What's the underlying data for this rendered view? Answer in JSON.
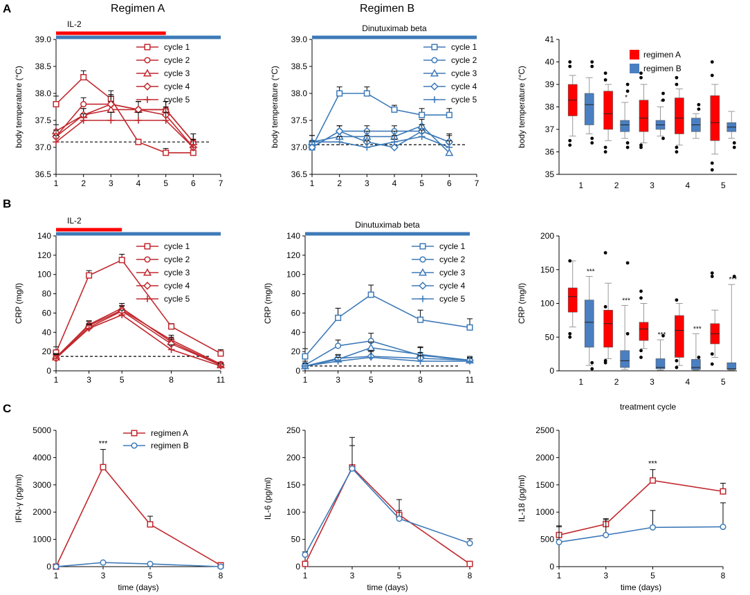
{
  "panel_labels": [
    "A",
    "B",
    "C"
  ],
  "regimen_titles": {
    "a": "Regimen A",
    "b": "Regimen B"
  },
  "colors": {
    "regimen_a": "#c1272d",
    "regimen_b": "#3d7ab8",
    "box_a": "#ff0000",
    "box_b": "#4a7fc1",
    "il2_bar": "#ff0000",
    "dinu_bar": "#3d7ab8",
    "axis": "#000000",
    "baseline": "#000000"
  },
  "chart_data": [
    {
      "id": "A1",
      "type": "line",
      "ylabel": "body temperature (°C)",
      "x": [
        1,
        2,
        3,
        4,
        5,
        6
      ],
      "xticks": [
        "1",
        "2",
        "3",
        "4",
        "5",
        "6",
        "7"
      ],
      "xlim": [
        1,
        7
      ],
      "ylim": [
        36.5,
        39.0
      ],
      "yticks": [
        "36.5",
        "37.0",
        "37.5",
        "38.0",
        "38.5",
        "39.0"
      ],
      "baseline": 37.1,
      "color_key": "regimen_a",
      "bars": [
        {
          "label": "IL-2",
          "from": 1,
          "to": 5,
          "color_key": "il2_bar"
        },
        {
          "label": "",
          "from": 1,
          "to": 7,
          "color_key": "dinu_bar"
        }
      ],
      "series": [
        {
          "name": "cycle 1",
          "marker": "square",
          "values": [
            37.8,
            38.3,
            37.9,
            37.1,
            36.9,
            36.9
          ],
          "err": [
            0.15,
            0.12,
            0.15,
            0.05,
            0.08,
            0.1
          ]
        },
        {
          "name": "cycle 2",
          "marker": "circle",
          "values": [
            37.2,
            37.8,
            37.8,
            37.7,
            37.7,
            37.1
          ],
          "err": [
            0.12,
            0.12,
            0.18,
            0.15,
            0.15,
            0.15
          ]
        },
        {
          "name": "cycle 3",
          "marker": "triangle",
          "values": [
            37.3,
            37.6,
            37.7,
            37.7,
            37.7,
            37.1
          ],
          "err": [
            0.12,
            0.12,
            0.15,
            0.15,
            0.15,
            0.15
          ]
        },
        {
          "name": "cycle 4",
          "marker": "diamond",
          "values": [
            37.2,
            37.6,
            37.8,
            37.7,
            37.6,
            37.0
          ],
          "err": [
            0.12,
            0.12,
            0.15,
            0.15,
            0.15,
            0.15
          ]
        },
        {
          "name": "cycle 5",
          "marker": "plus",
          "values": [
            37.1,
            37.5,
            37.5,
            37.5,
            37.5,
            37.0
          ],
          "err": [
            0.12,
            0.12,
            0.15,
            0.15,
            0.15,
            0.15
          ]
        }
      ]
    },
    {
      "id": "A2",
      "type": "line",
      "ylabel": "body temperature (°C)",
      "x": [
        1,
        2,
        3,
        4,
        5,
        6
      ],
      "xticks": [
        "1",
        "2",
        "3",
        "4",
        "5",
        "6",
        "7"
      ],
      "xlim": [
        1,
        7
      ],
      "ylim": [
        36.5,
        39.0
      ],
      "yticks": [
        "36.5",
        "37.0",
        "37.5",
        "38.0",
        "38.5",
        "39.0"
      ],
      "baseline": 37.05,
      "color_key": "regimen_b",
      "bars": [
        {
          "label": "Dinutuximab beta",
          "from": 1,
          "to": 7,
          "color_key": "dinu_bar"
        }
      ],
      "series": [
        {
          "name": "cycle 1",
          "marker": "square",
          "values": [
            37.0,
            38.0,
            38.0,
            37.7,
            37.6,
            37.6
          ],
          "err": [
            0.12,
            0.12,
            0.12,
            0.08,
            0.12,
            0.12
          ]
        },
        {
          "name": "cycle 2",
          "marker": "circle",
          "values": [
            37.0,
            37.3,
            37.3,
            37.3,
            37.3,
            37.1
          ],
          "err": [
            0.12,
            0.1,
            0.1,
            0.1,
            0.12,
            0.12
          ]
        },
        {
          "name": "cycle 3",
          "marker": "triangle",
          "values": [
            37.1,
            37.2,
            37.2,
            37.2,
            37.4,
            36.9
          ],
          "err": [
            0.12,
            0.1,
            0.1,
            0.1,
            0.12,
            0.2
          ]
        },
        {
          "name": "cycle 4",
          "marker": "diamond",
          "values": [
            37.0,
            37.3,
            37.1,
            37.0,
            37.3,
            37.1
          ],
          "err": [
            0.12,
            0.1,
            0.12,
            0.15,
            0.12,
            0.15
          ]
        },
        {
          "name": "cycle 5",
          "marker": "plus",
          "values": [
            37.1,
            37.1,
            37.0,
            37.1,
            37.2,
            37.0
          ],
          "err": [
            0.12,
            0.1,
            0.12,
            0.12,
            0.12,
            0.12
          ]
        }
      ]
    },
    {
      "id": "A3",
      "type": "box",
      "ylabel": "body temperature (°C)",
      "categories": [
        "1",
        "2",
        "3",
        "4",
        "5"
      ],
      "ylim": [
        35,
        41
      ],
      "yticks": [
        "35",
        "36",
        "37",
        "38",
        "39",
        "40",
        "41"
      ],
      "legend": [
        "regimen A",
        "regimen B"
      ],
      "groups": [
        {
          "a": {
            "q1": 37.6,
            "med": 38.3,
            "q3": 39.0,
            "wlo": 36.7,
            "whi": 39.4,
            "out": [
              36.3,
              36.5,
              39.8,
              40.0
            ]
          },
          "b": {
            "q1": 37.2,
            "med": 38.1,
            "q3": 38.6,
            "wlo": 36.8,
            "whi": 39.3,
            "out": [
              36.4,
              36.6,
              39.8,
              40.0
            ]
          },
          "sig": ""
        },
        {
          "a": {
            "q1": 37.0,
            "med": 37.7,
            "q3": 38.7,
            "wlo": 36.5,
            "whi": 39.0,
            "out": [
              36.0,
              36.2,
              39.2,
              39.5
            ]
          },
          "b": {
            "q1": 36.9,
            "med": 37.2,
            "q3": 37.4,
            "wlo": 36.6,
            "whi": 38.2,
            "out": [
              36.2,
              36.4,
              38.7,
              39.0
            ]
          },
          "sig": "*"
        },
        {
          "a": {
            "q1": 36.9,
            "med": 37.5,
            "q3": 38.3,
            "wlo": 36.4,
            "whi": 39.0,
            "out": [
              36.2,
              36.3,
              39.3,
              39.5
            ]
          },
          "b": {
            "q1": 37.0,
            "med": 37.2,
            "q3": 37.4,
            "wlo": 36.7,
            "whi": 38.0,
            "out": [
              36.6,
              38.3,
              38.6
            ]
          },
          "sig": "*"
        },
        {
          "a": {
            "q1": 36.8,
            "med": 37.5,
            "q3": 38.4,
            "wlo": 36.3,
            "whi": 38.8,
            "out": [
              36.0,
              36.2,
              39.0,
              39.3
            ]
          },
          "b": {
            "q1": 36.9,
            "med": 37.2,
            "q3": 37.5,
            "wlo": 36.6,
            "whi": 37.7,
            "out": [
              37.9,
              38.1
            ]
          },
          "sig": ""
        },
        {
          "a": {
            "q1": 36.5,
            "med": 37.3,
            "q3": 38.5,
            "wlo": 35.9,
            "whi": 39.0,
            "out": [
              35.2,
              35.5,
              39.4,
              40.0
            ]
          },
          "b": {
            "q1": 36.9,
            "med": 37.1,
            "q3": 37.3,
            "wlo": 36.6,
            "whi": 37.8,
            "out": [
              36.2,
              36.4
            ]
          },
          "sig": ""
        }
      ]
    },
    {
      "id": "B1",
      "type": "line",
      "ylabel": "CRP (mg/l)",
      "x": [
        1,
        3,
        5,
        8,
        11
      ],
      "xticks": [
        "1",
        "3",
        "5",
        "8",
        "11"
      ],
      "xlim": [
        1,
        11
      ],
      "ylim": [
        0,
        140
      ],
      "yticks": [
        "0",
        "20",
        "40",
        "60",
        "80",
        "100",
        "120",
        "140"
      ],
      "baseline": 15,
      "color_key": "regimen_a",
      "bars": [
        {
          "label": "IL-2",
          "from": 1,
          "to": 5,
          "color_key": "il2_bar"
        },
        {
          "label": "",
          "from": 1,
          "to": 11,
          "color_key": "dinu_bar"
        }
      ],
      "series": [
        {
          "name": "cycle 1",
          "marker": "square",
          "values": [
            19,
            99,
            115,
            46,
            18
          ],
          "err": [
            6,
            5,
            6,
            3,
            4
          ]
        },
        {
          "name": "cycle 2",
          "marker": "circle",
          "values": [
            14,
            47,
            63,
            32,
            7
          ],
          "err": [
            4,
            4,
            5,
            5,
            2
          ]
        },
        {
          "name": "cycle 3",
          "marker": "triangle",
          "values": [
            14,
            48,
            65,
            30,
            6
          ],
          "err": [
            4,
            4,
            5,
            5,
            2
          ]
        },
        {
          "name": "cycle 4",
          "marker": "diamond",
          "values": [
            13,
            45,
            62,
            28,
            6
          ],
          "err": [
            4,
            4,
            5,
            5,
            2
          ]
        },
        {
          "name": "cycle 5",
          "marker": "plus",
          "values": [
            13,
            44,
            58,
            22,
            5
          ],
          "err": [
            4,
            4,
            5,
            5,
            2
          ]
        }
      ]
    },
    {
      "id": "B2",
      "type": "line",
      "ylabel": "CRP (mg/l)",
      "x": [
        1,
        3,
        5,
        8,
        11
      ],
      "xticks": [
        "1",
        "3",
        "5",
        "8",
        "11"
      ],
      "xlim": [
        1,
        11
      ],
      "ylim": [
        0,
        140
      ],
      "yticks": [
        "0",
        "20",
        "40",
        "60",
        "80",
        "100",
        "120",
        "140"
      ],
      "baseline": 5,
      "color_key": "regimen_b",
      "bars": [
        {
          "label": "Dinutuximab beta",
          "from": 1,
          "to": 11,
          "color_key": "dinu_bar"
        }
      ],
      "series": [
        {
          "name": "cycle 1",
          "marker": "square",
          "values": [
            15,
            55,
            79,
            53,
            45
          ],
          "err": [
            8,
            10,
            10,
            10,
            9
          ]
        },
        {
          "name": "cycle 2",
          "marker": "circle",
          "values": [
            6,
            26,
            31,
            16,
            11
          ],
          "err": [
            4,
            6,
            8,
            8,
            4
          ]
        },
        {
          "name": "cycle 3",
          "marker": "triangle",
          "values": [
            5,
            12,
            24,
            17,
            11
          ],
          "err": [
            3,
            4,
            6,
            8,
            3
          ]
        },
        {
          "name": "cycle 4",
          "marker": "diamond",
          "values": [
            5,
            13,
            15,
            13,
            11
          ],
          "err": [
            3,
            4,
            6,
            6,
            3
          ]
        },
        {
          "name": "cycle 5",
          "marker": "plus",
          "values": [
            5,
            10,
            14,
            10,
            10
          ],
          "err": [
            3,
            4,
            6,
            6,
            3
          ]
        }
      ]
    },
    {
      "id": "B3",
      "type": "box",
      "ylabel": "CRP (mg/l)",
      "xlabel": "treatment cycle",
      "categories": [
        "1",
        "2",
        "3",
        "4",
        "5"
      ],
      "ylim": [
        0,
        200
      ],
      "yticks": [
        "0",
        "50",
        "100",
        "150",
        "200"
      ],
      "groups": [
        {
          "a": {
            "q1": 87,
            "med": 110,
            "q3": 123,
            "wlo": 65,
            "whi": 163,
            "out": [
              50,
              55,
              163
            ]
          },
          "b": {
            "q1": 35,
            "med": 72,
            "q3": 105,
            "wlo": 8,
            "whi": 140,
            "out": [
              3,
              12
            ]
          },
          "sig": "***"
        },
        {
          "a": {
            "q1": 35,
            "med": 70,
            "q3": 90,
            "wlo": 18,
            "whi": 130,
            "out": [
              12,
              15,
              95,
              175
            ]
          },
          "b": {
            "q1": 5,
            "med": 15,
            "q3": 30,
            "wlo": 2,
            "whi": 97,
            "out": [
              55,
              160
            ]
          },
          "sig": "***"
        },
        {
          "a": {
            "q1": 45,
            "med": 62,
            "q3": 72,
            "wlo": 33,
            "whi": 100,
            "out": [
              20,
              30,
              108,
              118
            ]
          },
          "b": {
            "q1": 3,
            "med": 5,
            "q3": 18,
            "wlo": 1,
            "whi": 46,
            "out": [
              52
            ]
          },
          "sig": "***"
        },
        {
          "a": {
            "q1": 20,
            "med": 60,
            "q3": 82,
            "wlo": 8,
            "whi": 100,
            "out": [
              5,
              15,
              105
            ]
          },
          "b": {
            "q1": 2,
            "med": 5,
            "q3": 17,
            "wlo": 1,
            "whi": 55,
            "out": [
              20
            ]
          },
          "sig": "***"
        },
        {
          "a": {
            "q1": 40,
            "med": 55,
            "q3": 70,
            "wlo": 20,
            "whi": 90,
            "out": [
              10,
              25,
              140,
              145
            ]
          },
          "b": {
            "q1": 2,
            "med": 3,
            "q3": 12,
            "wlo": 1,
            "whi": 128,
            "out": [
              140
            ]
          },
          "sig": "***"
        }
      ]
    },
    {
      "id": "C1",
      "type": "line",
      "ylabel": "IFN-γ (pg/ml)",
      "xlabel": "time (days)",
      "x": [
        1,
        3,
        5,
        8
      ],
      "xticks": [
        "1",
        "3",
        "5",
        "8"
      ],
      "xlim": [
        1,
        8
      ],
      "ylim": [
        0,
        5000
      ],
      "yticks": [
        "0",
        "1000",
        "2000",
        "3000",
        "4000",
        "5000"
      ],
      "legend": [
        "regimen A",
        "regimen B"
      ],
      "series": [
        {
          "name": "regimen A",
          "marker": "square",
          "color_key": "regimen_a",
          "values": [
            0,
            3650,
            1550,
            50
          ],
          "err": [
            20,
            650,
            300,
            40
          ],
          "sig": [
            "",
            "***",
            "",
            ""
          ]
        },
        {
          "name": "regimen B",
          "marker": "circle",
          "color_key": "regimen_b",
          "values": [
            0,
            150,
            100,
            0
          ],
          "err": [
            10,
            40,
            30,
            10
          ]
        }
      ]
    },
    {
      "id": "C2",
      "type": "line",
      "ylabel": "IL-6 (pg/ml)",
      "xlabel": "time (days)",
      "x": [
        1,
        3,
        5,
        8
      ],
      "xticks": [
        "1",
        "3",
        "5",
        "8"
      ],
      "xlim": [
        1,
        8
      ],
      "ylim": [
        0,
        250
      ],
      "yticks": [
        "0",
        "50",
        "100",
        "150",
        "200",
        "250"
      ],
      "series": [
        {
          "name": "regimen A",
          "marker": "square",
          "color_key": "regimen_a",
          "values": [
            5,
            182,
            95,
            5
          ],
          "err": [
            4,
            55,
            28,
            3
          ]
        },
        {
          "name": "regimen B",
          "marker": "circle",
          "color_key": "regimen_b",
          "values": [
            22,
            180,
            88,
            43
          ],
          "err": [
            5,
            42,
            15,
            8
          ]
        }
      ]
    },
    {
      "id": "C3",
      "type": "line",
      "ylabel": "IL-18 (pg/ml)",
      "xlabel": "time (days)",
      "x": [
        1,
        3,
        5,
        8
      ],
      "xticks": [
        "1",
        "3",
        "5",
        "8"
      ],
      "xlim": [
        1,
        8
      ],
      "ylim": [
        0,
        2500
      ],
      "yticks": [
        "0",
        "500",
        "1000",
        "1500",
        "2000",
        "2500"
      ],
      "series": [
        {
          "name": "regimen A",
          "marker": "square",
          "color_key": "regimen_a",
          "values": [
            580,
            780,
            1580,
            1380
          ],
          "err": [
            150,
            80,
            200,
            150
          ],
          "sig": [
            "",
            "",
            "***",
            ""
          ]
        },
        {
          "name": "regimen B",
          "marker": "circle",
          "color_key": "regimen_b",
          "values": [
            450,
            580,
            720,
            730
          ],
          "err": [
            300,
            300,
            310,
            440
          ]
        }
      ]
    }
  ]
}
